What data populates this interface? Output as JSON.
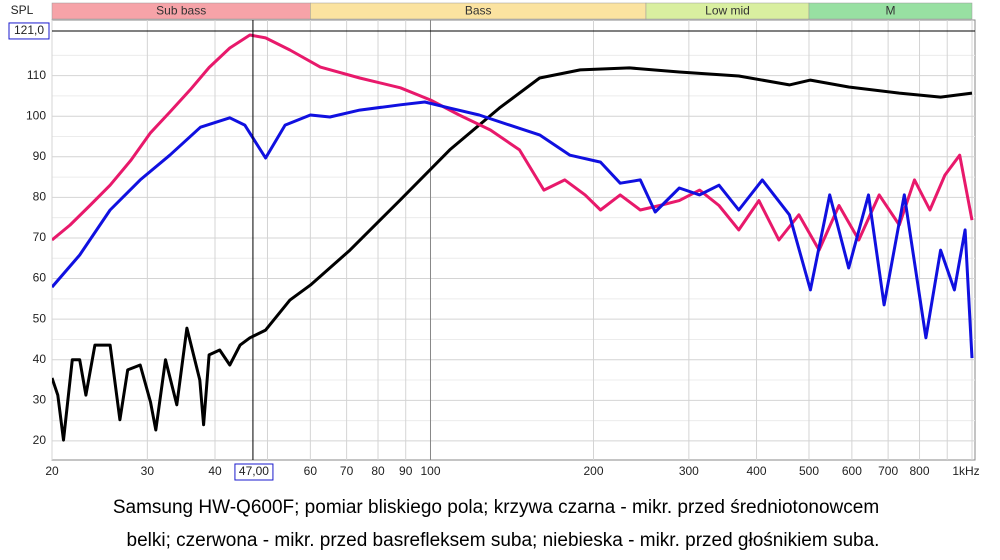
{
  "chart_data": {
    "type": "line",
    "log_x": true,
    "y_label": "SPL",
    "xlim": [
      20,
      1000
    ],
    "ylim": [
      15.3,
      123.7
    ],
    "xticks": [
      20,
      30,
      40,
      60,
      70,
      80,
      90,
      100,
      200,
      300,
      400,
      500,
      600,
      700,
      800,
      {
        "value": 1000,
        "label": "1kHz"
      }
    ],
    "xminor": [
      50,
      900
    ],
    "yticks": [
      20,
      30,
      40,
      50,
      60,
      70,
      80,
      90,
      100,
      110
    ],
    "yminor": [
      25,
      35,
      45,
      55,
      65,
      75,
      85,
      95,
      105,
      115
    ],
    "grid": true,
    "bands": [
      {
        "label": "Sub bass",
        "from": 20,
        "to": 60,
        "color": "#f6a3a8"
      },
      {
        "label": "Bass",
        "from": 60,
        "to": 250,
        "color": "#fbe3a0"
      },
      {
        "label": "Low mid",
        "from": 250,
        "to": 500,
        "color": "#d9efa0"
      },
      {
        "label": "M",
        "from": 500,
        "to": 1000,
        "color": "#98e0a2"
      }
    ],
    "cursor": {
      "x": 47,
      "x_label": "47,00",
      "y": 121,
      "y_label": "121,0"
    },
    "series": [
      {
        "color": "#000000",
        "x": [
          20,
          20.5,
          21,
          21.8,
          22.5,
          23.1,
          24,
          25.6,
          26.7,
          27.6,
          29.1,
          30.4,
          31.1,
          32.4,
          34,
          35.5,
          37.5,
          38.1,
          39,
          40.8,
          42.6,
          44.5,
          46.4,
          49.6,
          55,
          60,
          71,
          88,
          108.5,
          134,
          159,
          189,
          233,
          288,
          371,
          460,
          503,
          592,
          734,
          875,
          1000
        ],
        "values": [
          35.5,
          31.3,
          20.2,
          40,
          40,
          31.3,
          43.6,
          43.6,
          25.2,
          37.5,
          38.7,
          29.6,
          22.7,
          40,
          28.9,
          47.8,
          35,
          24,
          41.2,
          42.4,
          38.7,
          43.6,
          45.4,
          47.3,
          54.7,
          58.4,
          67,
          79.4,
          91.7,
          102,
          109.4,
          111.4,
          111.9,
          110.9,
          109.9,
          107.7,
          108.9,
          107.2,
          105.7,
          104.7,
          105.7
        ]
      },
      {
        "color": "#e8196b",
        "x": [
          20,
          21.6,
          23.5,
          25.6,
          28,
          30.4,
          33,
          36,
          39,
          42.6,
          46.4,
          49.6,
          55,
          62.6,
          74,
          88,
          100,
          113,
          129,
          146,
          162,
          177,
          193,
          206,
          224,
          244,
          265,
          288,
          314,
          341,
          371,
          404,
          440,
          479,
          522,
          568,
          618,
          674,
          734,
          783,
          836,
          891,
          949,
          1000
        ],
        "values": [
          69.5,
          73.2,
          78,
          83,
          89.2,
          95.9,
          101,
          106.5,
          112,
          116.8,
          120,
          119.3,
          116.3,
          112.1,
          109.4,
          107,
          104,
          100.3,
          96.6,
          91.7,
          81.8,
          84.3,
          80.6,
          76.9,
          80.6,
          76.9,
          78,
          79.2,
          81.8,
          78,
          72,
          79.2,
          69.5,
          75.7,
          67,
          78,
          69.5,
          80.6,
          73.2,
          84.3,
          76.9,
          85.5,
          90.4,
          74.4
        ]
      },
      {
        "color": "#1010e0",
        "x": [
          20,
          22.5,
          25.6,
          29.1,
          33,
          37.6,
          42.6,
          45.4,
          49.6,
          53.9,
          60,
          65.2,
          74,
          88,
          97.6,
          108.5,
          123,
          140,
          159,
          181,
          206,
          224,
          244,
          260,
          288,
          314,
          341,
          371,
          410,
          460,
          503,
          546,
          592,
          644,
          688,
          750,
          822,
          875,
          928,
          971,
          1000
        ],
        "values": [
          57.9,
          65.8,
          76.9,
          84.3,
          90.4,
          97.3,
          99.6,
          97.8,
          89.7,
          97.8,
          100.3,
          99.8,
          101.5,
          102.8,
          103.5,
          102,
          100.3,
          97.8,
          95.4,
          90.4,
          88.7,
          83.5,
          84.3,
          76.4,
          82.3,
          80.6,
          83,
          76.9,
          84.3,
          75.7,
          57.2,
          80.6,
          62.6,
          80.6,
          53.5,
          80.6,
          45.4,
          67,
          57.2,
          72,
          40.4
        ]
      }
    ],
    "caption": [
      "Samsung HW-Q600F; pomiar bliskiego pola; krzywa czarna - mikr. przed średniotonowcem",
      "belki; czerwona - mikr. przed basrefleksem suba; niebieska - mikr. przed głośnikiem suba."
    ]
  }
}
